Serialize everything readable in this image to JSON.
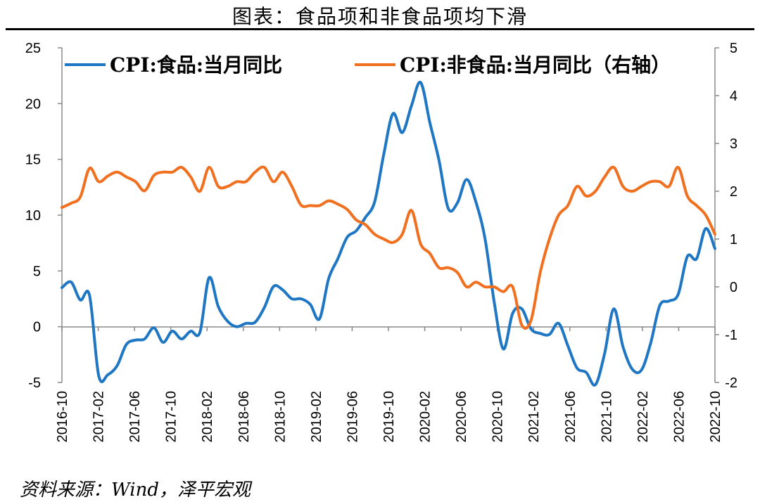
{
  "title": "图表：食品项和非食品项均下滑",
  "source": "资料来源：Wind，泽平宏观",
  "chart_data": {
    "type": "line",
    "x_tick_labels": [
      "2016-10",
      "2017-02",
      "2017-06",
      "2017-10",
      "2018-02",
      "2018-06",
      "2018-10",
      "2019-02",
      "2019-06",
      "2019-10",
      "2020-02",
      "2020-06",
      "2020-10",
      "2021-02",
      "2021-06",
      "2021-10",
      "2022-02",
      "2022-06",
      "2022-10"
    ],
    "y_left": {
      "ticks": [
        25,
        20,
        15,
        10,
        5,
        0,
        -5
      ],
      "ylim": [
        -5,
        25
      ]
    },
    "y_right": {
      "ticks": [
        5,
        4,
        3,
        2,
        1,
        0,
        -1,
        -2
      ],
      "ylim": [
        -2,
        5
      ]
    },
    "grid": false,
    "legend_position": "top",
    "series": [
      {
        "name": "CPI:食品:当月同比",
        "axis": "left",
        "color": "#1f77c4",
        "values": [
          3.5,
          4.0,
          2.4,
          2.8,
          -4.4,
          -4.3,
          -3.5,
          -1.6,
          -1.2,
          -1.1,
          -0.1,
          -1.4,
          -0.4,
          -1.1,
          -0.4,
          -0.5,
          4.4,
          1.8,
          0.5,
          0.0,
          0.3,
          0.4,
          1.7,
          3.6,
          3.3,
          2.5,
          2.5,
          2.0,
          0.7,
          4.3,
          6.1,
          8.0,
          8.6,
          9.8,
          11.2,
          15.5,
          19.1,
          17.4,
          19.8,
          21.9,
          18.3,
          14.9,
          10.6,
          11.1,
          13.2,
          11.2,
          7.9,
          2.2,
          -2.0,
          1.2,
          1.6,
          -0.2,
          -0.6,
          -0.7,
          0.3,
          -1.7,
          -3.7,
          -4.1,
          -5.2,
          -2.4,
          1.6,
          -1.8,
          -3.8,
          -3.9,
          -1.5,
          1.9,
          2.3,
          2.9,
          6.3,
          6.1,
          8.8,
          7.0
        ]
      },
      {
        "name": "CPI:非食品:当月同比（右轴）",
        "axis": "right",
        "color": "#f07020",
        "values": [
          1.66,
          1.75,
          1.88,
          2.48,
          2.2,
          2.32,
          2.4,
          2.3,
          2.2,
          2.01,
          2.33,
          2.4,
          2.4,
          2.5,
          2.3,
          2.0,
          2.5,
          2.1,
          2.1,
          2.2,
          2.2,
          2.4,
          2.5,
          2.2,
          2.4,
          2.1,
          1.71,
          1.7,
          1.7,
          1.8,
          1.73,
          1.62,
          1.4,
          1.3,
          1.1,
          1.0,
          0.93,
          1.1,
          1.6,
          0.9,
          0.7,
          0.4,
          0.4,
          0.3,
          0.0,
          0.1,
          0.0,
          0.0,
          -0.1,
          0.0,
          -0.8,
          -0.7,
          0.3,
          1.0,
          1.5,
          1.7,
          2.1,
          1.9,
          2.0,
          2.3,
          2.5,
          2.1,
          2.0,
          2.1,
          2.2,
          2.2,
          2.1,
          2.5,
          1.9,
          1.7,
          1.5,
          1.1
        ]
      }
    ]
  }
}
